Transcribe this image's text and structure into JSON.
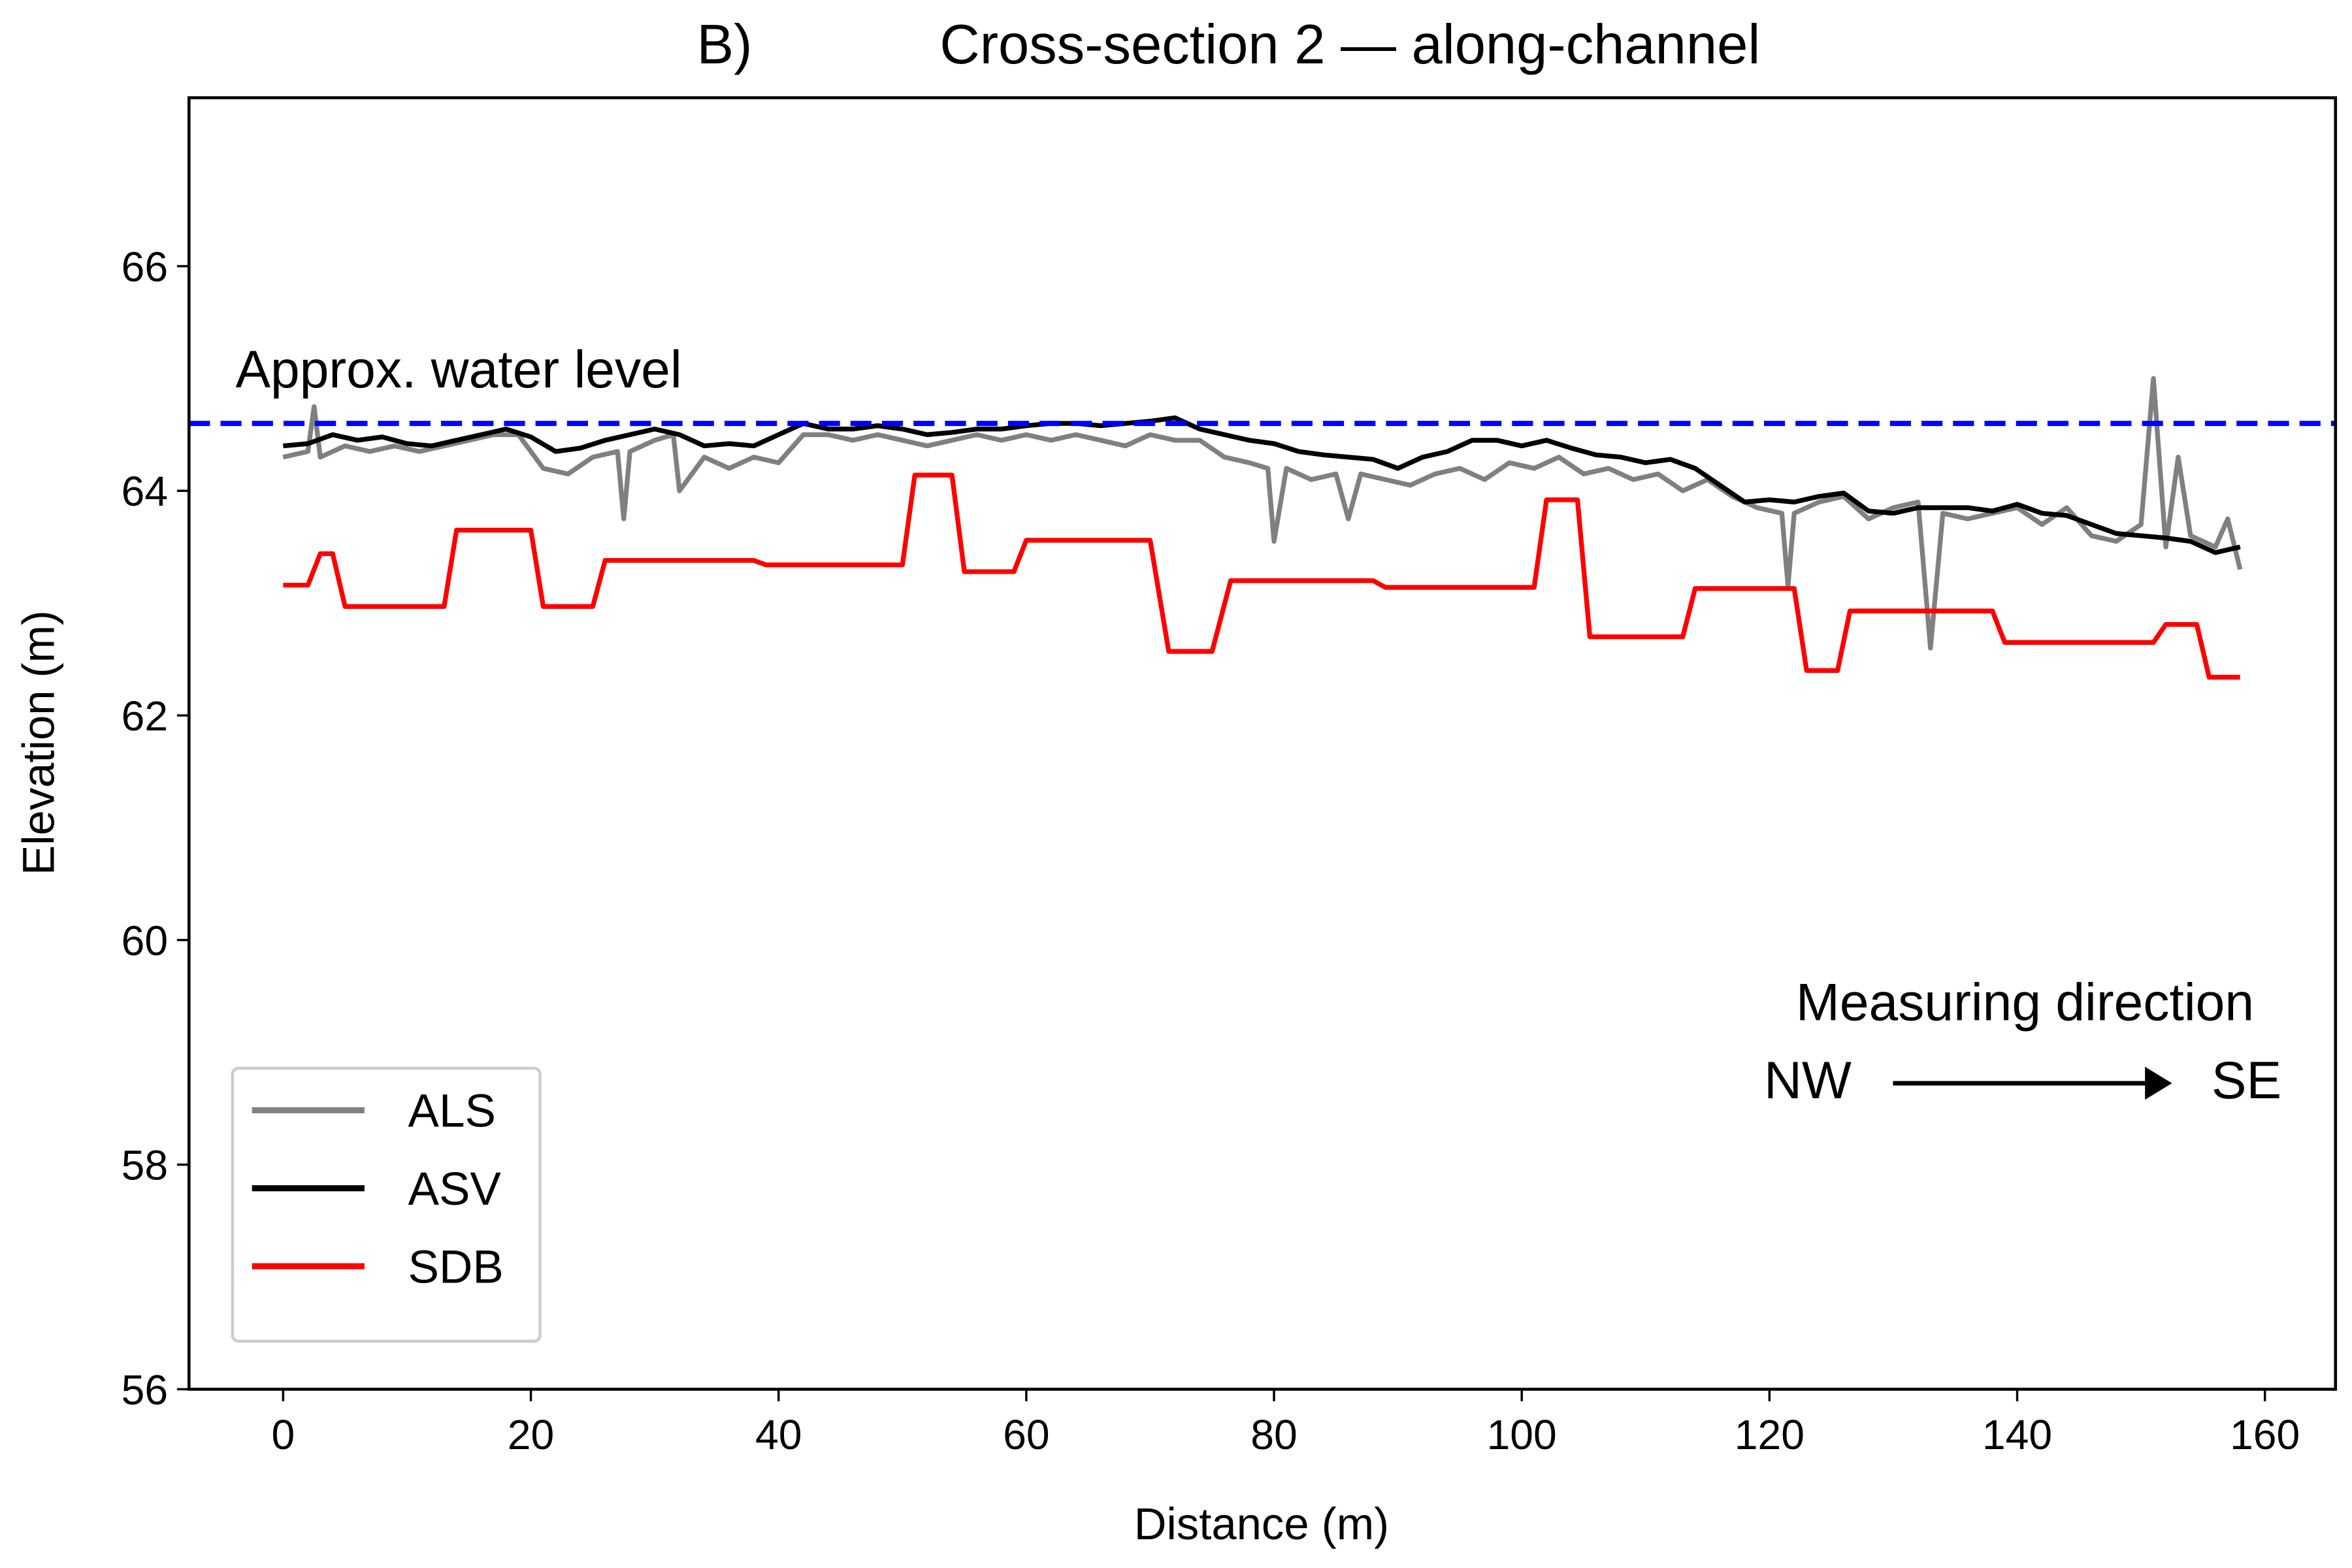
{
  "chart_data": {
    "type": "line",
    "panel_label": "B)",
    "title": "Cross-section 2 — along-channel",
    "xlabel": "Distance (m)",
    "ylabel": "Elevation (m)",
    "xlim": [
      -7.6,
      165.7
    ],
    "ylim": [
      56,
      67.5
    ],
    "xticks": [
      0,
      20,
      40,
      60,
      80,
      100,
      120,
      140,
      160
    ],
    "yticks": [
      56,
      58,
      60,
      62,
      64,
      66
    ],
    "grid": false,
    "legend": "lower left",
    "hlines": [
      {
        "value": 64.6,
        "label": "Approx. water level",
        "color": "#0000ff",
        "style": "dashed"
      }
    ],
    "annotations": {
      "heading": "Measuring direction",
      "from": "NW",
      "to": "SE"
    },
    "series": [
      {
        "name": "ALS",
        "color": "#808080",
        "x": [
          0,
          2,
          2.5,
          3,
          5,
          7,
          9,
          11,
          13,
          15,
          17,
          19,
          21,
          23,
          25,
          27,
          27.5,
          28,
          30,
          31.5,
          32,
          34,
          36,
          38,
          40,
          42,
          44,
          46,
          48,
          50,
          52,
          54,
          56,
          58,
          60,
          62,
          64,
          66,
          68,
          70,
          72,
          74,
          76,
          78,
          79.5,
          80,
          81,
          83,
          85,
          86,
          87,
          89,
          91,
          93,
          95,
          97,
          99,
          101,
          103,
          105,
          107,
          109,
          111,
          113,
          115,
          117,
          119,
          121,
          121.5,
          122,
          124,
          126,
          128,
          130,
          132,
          133,
          134,
          136,
          138,
          140,
          142,
          144,
          146,
          148,
          150,
          151,
          152,
          153,
          154,
          156,
          157,
          158
        ],
        "values": [
          64.3,
          64.35,
          64.75,
          64.3,
          64.4,
          64.35,
          64.4,
          64.35,
          64.4,
          64.45,
          64.5,
          64.5,
          64.2,
          64.15,
          64.3,
          64.35,
          63.75,
          64.35,
          64.45,
          64.5,
          64.0,
          64.3,
          64.2,
          64.3,
          64.25,
          64.5,
          64.5,
          64.45,
          64.5,
          64.45,
          64.4,
          64.45,
          64.5,
          64.45,
          64.5,
          64.45,
          64.5,
          64.45,
          64.4,
          64.5,
          64.45,
          64.45,
          64.3,
          64.25,
          64.2,
          63.55,
          64.2,
          64.1,
          64.15,
          63.75,
          64.15,
          64.1,
          64.05,
          64.15,
          64.2,
          64.1,
          64.25,
          64.2,
          64.3,
          64.15,
          64.2,
          64.1,
          64.15,
          64.0,
          64.1,
          63.95,
          63.85,
          63.8,
          63.15,
          63.8,
          63.9,
          63.95,
          63.75,
          63.85,
          63.9,
          62.6,
          63.8,
          63.75,
          63.8,
          63.85,
          63.7,
          63.85,
          63.6,
          63.55,
          63.7,
          65.0,
          63.5,
          64.3,
          63.6,
          63.5,
          63.75,
          63.3
        ]
      },
      {
        "name": "ASV",
        "color": "#000000",
        "x": [
          0,
          2,
          4,
          6,
          8,
          10,
          12,
          14,
          16,
          18,
          20,
          22,
          24,
          26,
          28,
          30,
          32,
          34,
          36,
          38,
          40,
          42,
          44,
          46,
          48,
          50,
          52,
          54,
          56,
          58,
          60,
          62,
          64,
          66,
          68,
          70,
          72,
          74,
          76,
          78,
          80,
          82,
          84,
          86,
          88,
          90,
          92,
          94,
          96,
          98,
          100,
          102,
          104,
          106,
          108,
          110,
          112,
          114,
          116,
          118,
          120,
          122,
          124,
          126,
          128,
          130,
          132,
          134,
          136,
          138,
          140,
          142,
          144,
          146,
          148,
          150,
          152,
          154,
          156,
          158
        ],
        "values": [
          64.4,
          64.42,
          64.5,
          64.45,
          64.48,
          64.42,
          64.4,
          64.45,
          64.5,
          64.55,
          64.48,
          64.35,
          64.38,
          64.45,
          64.5,
          64.55,
          64.5,
          64.4,
          64.42,
          64.4,
          64.5,
          64.6,
          64.55,
          64.55,
          64.58,
          64.55,
          64.5,
          64.52,
          64.55,
          64.55,
          64.58,
          64.6,
          64.6,
          64.58,
          64.6,
          64.62,
          64.65,
          64.55,
          64.5,
          64.45,
          64.42,
          64.35,
          64.32,
          64.3,
          64.28,
          64.2,
          64.3,
          64.35,
          64.45,
          64.45,
          64.4,
          64.45,
          64.38,
          64.32,
          64.3,
          64.25,
          64.28,
          64.2,
          64.05,
          63.9,
          63.92,
          63.9,
          63.95,
          63.98,
          63.82,
          63.8,
          63.85,
          63.85,
          63.85,
          63.82,
          63.88,
          63.8,
          63.78,
          63.7,
          63.62,
          63.6,
          63.58,
          63.55,
          63.45,
          63.5
        ]
      },
      {
        "name": "SDB",
        "color": "#ff0000",
        "x": [
          0,
          2,
          3,
          4,
          5,
          13,
          14,
          20,
          21,
          25,
          26,
          38,
          39,
          50,
          51,
          54,
          55,
          59,
          60,
          70,
          71.5,
          75,
          76.5,
          88,
          89,
          101,
          102,
          104.5,
          105.5,
          113,
          114,
          122,
          123,
          125.5,
          126.5,
          138,
          139,
          151,
          152,
          154.5,
          155.5,
          158
        ],
        "values": [
          63.16,
          63.16,
          63.44,
          63.44,
          62.97,
          62.97,
          63.65,
          63.65,
          62.97,
          62.97,
          63.38,
          63.38,
          63.34,
          63.34,
          64.14,
          64.14,
          63.28,
          63.28,
          63.56,
          63.56,
          62.57,
          62.57,
          63.2,
          63.2,
          63.14,
          63.14,
          63.92,
          63.92,
          62.7,
          62.7,
          63.13,
          63.13,
          62.4,
          62.4,
          62.93,
          62.93,
          62.65,
          62.65,
          62.81,
          62.81,
          62.34,
          62.34
        ]
      }
    ]
  }
}
